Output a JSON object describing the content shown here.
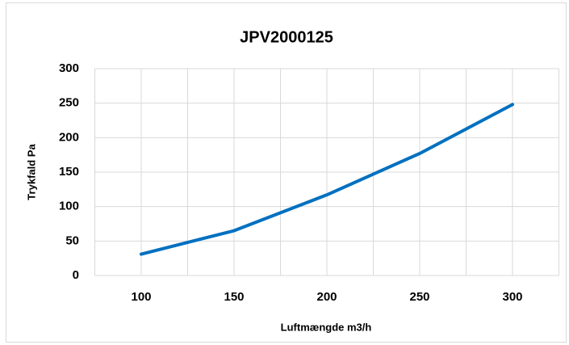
{
  "chart_data": {
    "type": "line",
    "title": "JPV2000125",
    "x_label": "Luftmængde m3/h",
    "y_label": "Trykfald Pa",
    "x": [
      100,
      150,
      200,
      250,
      300
    ],
    "series": [
      {
        "name": "JPV2000125",
        "color": "#0070c0",
        "values": [
          31,
          65,
          117,
          177,
          248
        ]
      }
    ],
    "xlim": [
      75,
      325
    ],
    "xticks": [
      100,
      150,
      200,
      250,
      300
    ],
    "x_grid_lines": [
      75,
      100,
      125,
      150,
      175,
      200,
      225,
      250,
      275,
      300,
      325
    ],
    "ylim": [
      0,
      300
    ],
    "yticks": [
      0,
      50,
      100,
      150,
      200,
      250,
      300
    ],
    "grid": true
  }
}
